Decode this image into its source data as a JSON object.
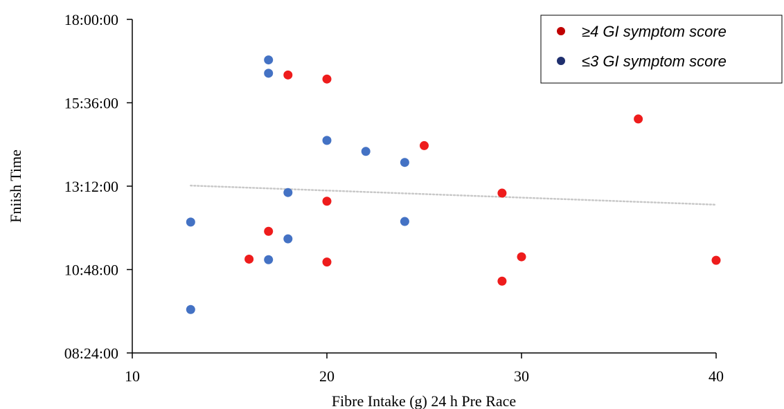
{
  "chart_data": {
    "type": "scatter",
    "xlabel": "Fibre Intake (g) 24 h Pre Race",
    "ylabel": "Fniish Time",
    "xlim": [
      10,
      40
    ],
    "ylim": [
      "08:24:00",
      "18:00:00"
    ],
    "x_ticks": [
      "10",
      "20",
      "30",
      "40"
    ],
    "y_ticks": [
      "08:24:00",
      "10:48:00",
      "13:12:00",
      "15:36:00",
      "18:00:00"
    ],
    "grid": false,
    "legend_position": "top-right",
    "series": [
      {
        "name": "≥4 GI symptom score",
        "color": "#ee1c1c",
        "legend_color": "#c00000",
        "points": [
          {
            "x": 16,
            "y": "11:06:00"
          },
          {
            "x": 17,
            "y": "11:54:00"
          },
          {
            "x": 18,
            "y": "16:24:00"
          },
          {
            "x": 20,
            "y": "16:17:00"
          },
          {
            "x": 20,
            "y": "12:46:00"
          },
          {
            "x": 20,
            "y": "11:01:00"
          },
          {
            "x": 25,
            "y": "14:22:00"
          },
          {
            "x": 29,
            "y": "13:00:00"
          },
          {
            "x": 29,
            "y": "10:28:00"
          },
          {
            "x": 30,
            "y": "11:10:00"
          },
          {
            "x": 36,
            "y": "15:08:00"
          },
          {
            "x": 40,
            "y": "11:04:00"
          }
        ]
      },
      {
        "name": "≤3 GI symptom score",
        "color": "#4472c4",
        "legend_color": "#1f2f6e",
        "points": [
          {
            "x": 13,
            "y": "12:10:00"
          },
          {
            "x": 13,
            "y": "09:39:00"
          },
          {
            "x": 17,
            "y": "16:50:00"
          },
          {
            "x": 17,
            "y": "16:27:00"
          },
          {
            "x": 17,
            "y": "11:05:00"
          },
          {
            "x": 18,
            "y": "13:01:00"
          },
          {
            "x": 18,
            "y": "11:41:00"
          },
          {
            "x": 20,
            "y": "14:31:00"
          },
          {
            "x": 22,
            "y": "14:12:00"
          },
          {
            "x": 24,
            "y": "13:53:00"
          },
          {
            "x": 24,
            "y": "12:11:00"
          }
        ]
      }
    ],
    "trendline": {
      "style": "dotted",
      "color": "#c8c8c8",
      "from": {
        "x": 13,
        "y": "13:13:00"
      },
      "to": {
        "x": 40,
        "y": "12:40:00"
      }
    }
  }
}
